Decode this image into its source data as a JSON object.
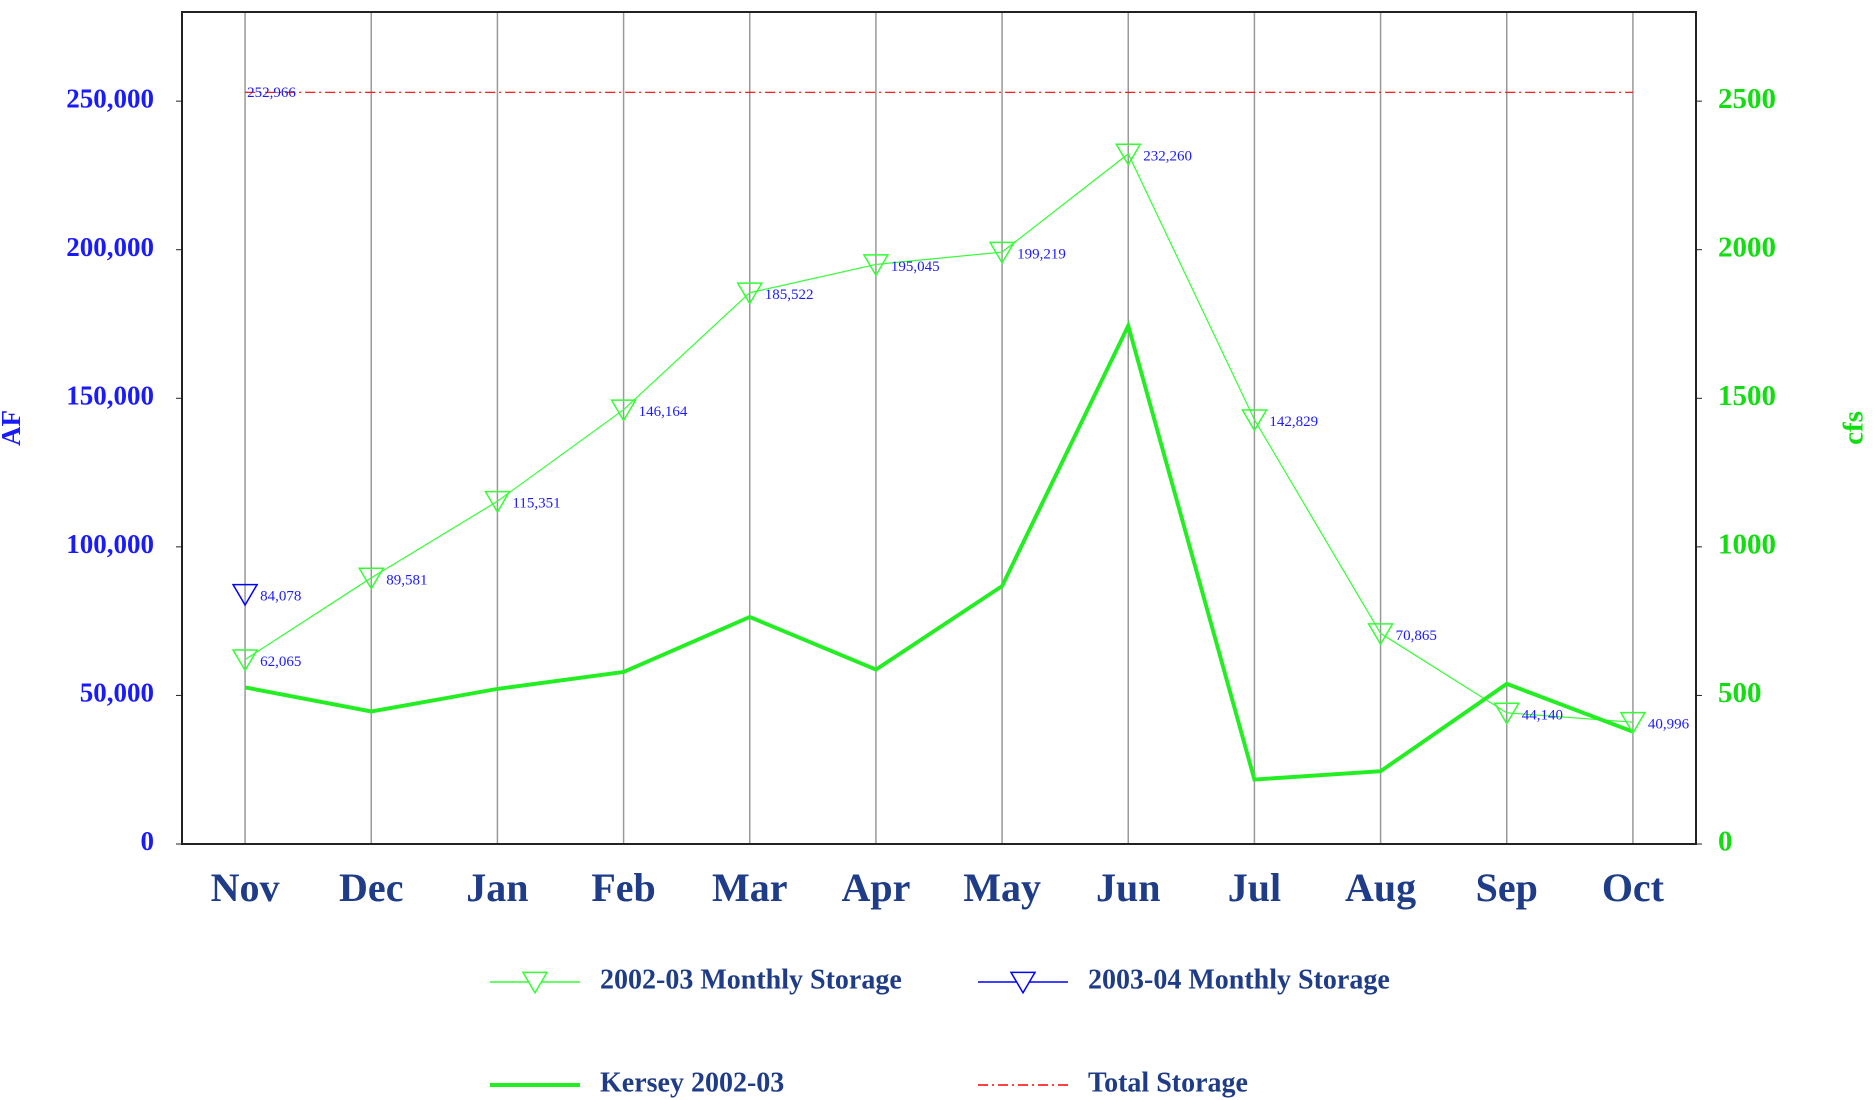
{
  "chart_data": {
    "type": "line",
    "categories": [
      "Nov",
      "Dec",
      "Jan",
      "Feb",
      "Mar",
      "Apr",
      "May",
      "Jun",
      "Jul",
      "Aug",
      "Sep",
      "Oct"
    ],
    "ylabel": "AF",
    "y2label": "cfs",
    "ylim": [
      0,
      280000
    ],
    "yticks": [
      0,
      {
        "value": 50000,
        "label": "50,000"
      },
      {
        "value": 100000,
        "label": "100,000"
      },
      {
        "value": 150000,
        "label": "150,000"
      },
      {
        "value": 200000,
        "label": "200,000"
      },
      {
        "value": 250000,
        "label": "250,000"
      }
    ],
    "y2lim": [
      0,
      2800
    ],
    "y2ticks": [
      0,
      500,
      1000,
      1500,
      2000,
      2500
    ],
    "x_grid": true,
    "series": [
      {
        "name": "2002-03 Monthly Storage",
        "color": "#33ff33",
        "marker": "triangle-down",
        "line_width": 1,
        "values": [
          62065,
          89581,
          115351,
          146164,
          185522,
          195045,
          199219,
          232260,
          142829,
          70865,
          44140,
          40996
        ],
        "value_labels": [
          "62,065",
          "89,581",
          "115,351",
          "146,164",
          "185,522",
          "195,045",
          "199,219",
          "232,260",
          "142,829",
          "70,865",
          "44,140",
          "40,996"
        ]
      },
      {
        "name": "2003-04 Monthly Storage",
        "color": "#0000ff",
        "marker": "triangle-down",
        "line_width": 1,
        "values": [
          84078,
          null,
          null,
          null,
          null,
          null,
          null,
          null,
          null,
          null,
          null,
          null
        ],
        "value_labels": [
          "84,078",
          null,
          null,
          null,
          null,
          null,
          null,
          null,
          null,
          null,
          null,
          null
        ]
      },
      {
        "name": "Kersey 2002-03",
        "color": "#22ee22",
        "axis": "y2",
        "line_width": 3,
        "values": [
          527,
          446,
          522,
          579,
          764,
          587,
          868,
          1744,
          217,
          245,
          539,
          378
        ]
      },
      {
        "name": "Total Storage",
        "color": "#ff0000",
        "line_style": "dash-dot",
        "line_width": 1,
        "values": [
          252966,
          252966,
          252966,
          252966,
          252966,
          252966,
          252966,
          252966,
          252966,
          252966,
          252966,
          252966
        ],
        "value_labels": [
          "252,966",
          null,
          null,
          null,
          null,
          null,
          null,
          null,
          null,
          null,
          null,
          null
        ]
      }
    ]
  }
}
